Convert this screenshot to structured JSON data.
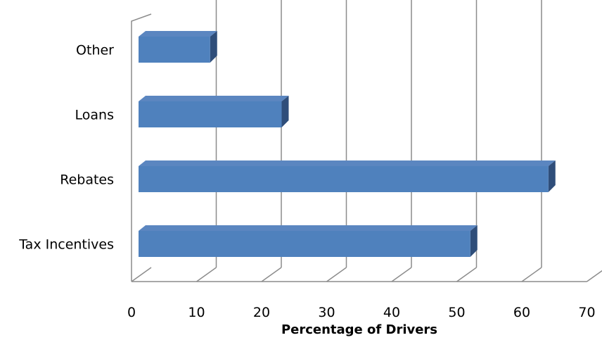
{
  "chart_data": {
    "type": "bar",
    "orientation": "horizontal",
    "style": "3d-clustered-bar",
    "categories": [
      "Tax Incentives",
      "Rebates",
      "Loans",
      "Other"
    ],
    "values": [
      51,
      63,
      22,
      11
    ],
    "xlabel": "Percentage of Drivers",
    "ylabel": "",
    "xlim": [
      0,
      70
    ],
    "xticks": [
      "0",
      "10",
      "20",
      "30",
      "40",
      "50",
      "60",
      "70"
    ],
    "grid": true,
    "legend": "none",
    "colors": {
      "bar_front": "#4f81bd",
      "bar_top": "#5b86c0",
      "bar_side": "#2f4e7a",
      "gridline": "#8c8c8c"
    }
  }
}
